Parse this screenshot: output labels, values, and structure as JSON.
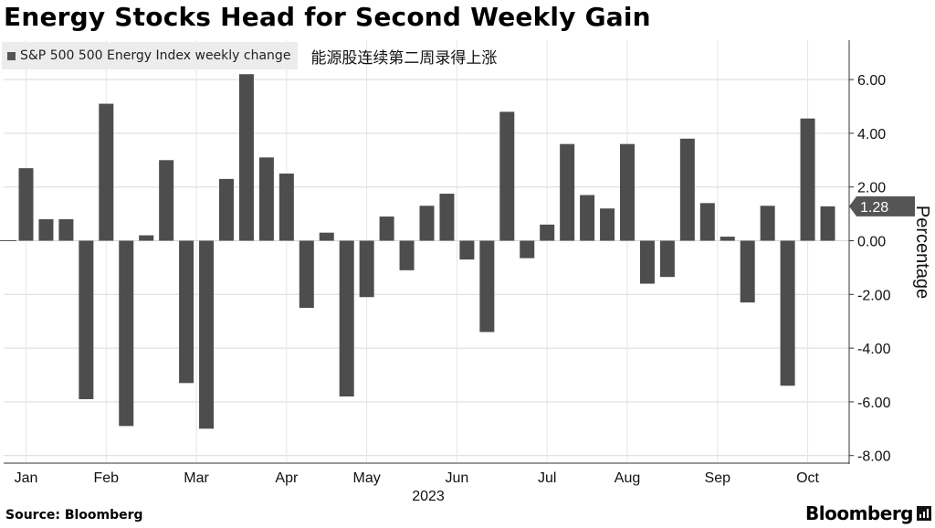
{
  "title": "Energy Stocks Head for Second Weekly Gain",
  "subtitle": "能源股连续第二周录得上涨",
  "source": "Source: Bloomberg",
  "brand": "Bloomberg",
  "chart_data": {
    "type": "bar",
    "xlabel": "2023",
    "ylabel": "Percentage",
    "ylim": [
      -8,
      7.5
    ],
    "yticks": [
      6,
      4,
      2,
      0,
      -2,
      -4,
      -6,
      -8
    ],
    "ytick_labels": [
      "6.00",
      "4.00",
      "2.00",
      "0.00",
      "-2.00",
      "-4.00",
      "-6.00",
      "-8.00"
    ],
    "month_labels": [
      "Jan",
      "Feb",
      "Mar",
      "Apr",
      "May",
      "Jun",
      "Jul",
      "Aug",
      "Sep",
      "Oct"
    ],
    "month_label_weeks": [
      1,
      5,
      9.5,
      14,
      18,
      22.5,
      27,
      31,
      35.5,
      40
    ],
    "last_value_label": "1.28",
    "grid": true,
    "legend": "top-left",
    "color": "#4d4d4d",
    "series": [
      {
        "name": "S&P 500 500 Energy Index weekly change",
        "values": [
          2.7,
          0.8,
          0.8,
          -5.9,
          5.1,
          -6.9,
          0.2,
          3.0,
          -5.3,
          -7.0,
          2.3,
          6.2,
          3.1,
          2.5,
          -2.5,
          0.3,
          -5.8,
          -2.1,
          0.9,
          -1.1,
          1.3,
          1.75,
          -0.7,
          -3.4,
          4.8,
          -0.65,
          0.6,
          3.6,
          1.7,
          1.2,
          3.6,
          -1.6,
          -1.35,
          3.8,
          1.4,
          0.15,
          -2.3,
          1.3,
          -5.4,
          4.55,
          1.28
        ]
      }
    ]
  }
}
